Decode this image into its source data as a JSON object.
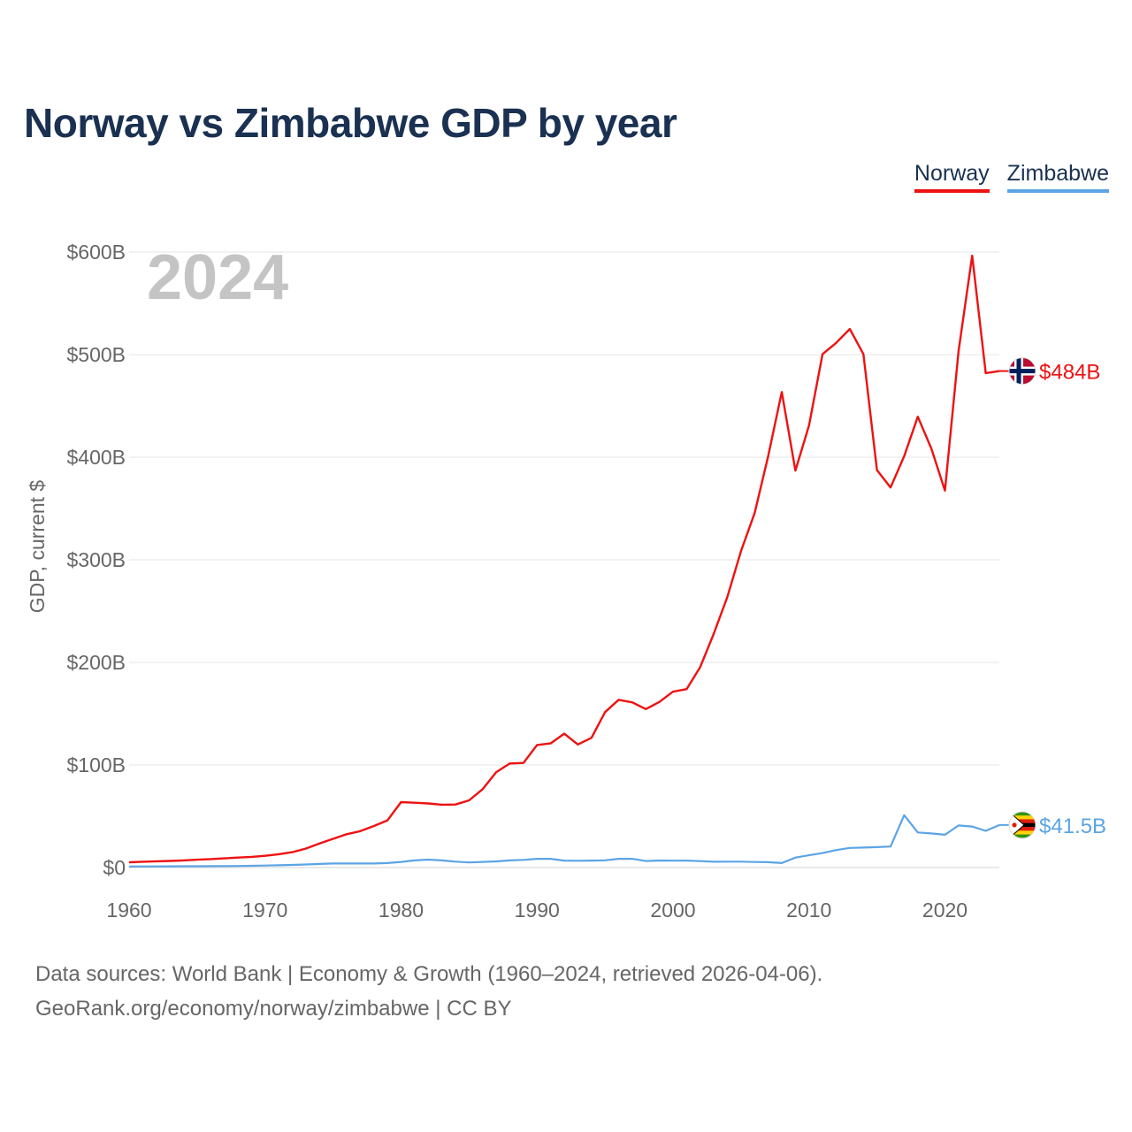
{
  "title": "Norway vs Zimbabwe GDP by year",
  "legend": {
    "norway_label": "Norway",
    "zimbabwe_label": "Zimbabwe"
  },
  "footer": {
    "line1": "Data sources: World Bank | Economy & Growth (1960–2024, retrieved 2026-04-06).",
    "line2": "GeoRank.org/economy/norway/zimbabwe | CC BY"
  },
  "chart_data": {
    "type": "line",
    "year_watermark": "2024",
    "ylabel": "GDP, current $",
    "xlabel": "",
    "xlim": [
      1960,
      2024
    ],
    "ylim": [
      0,
      600
    ],
    "units": "billions USD",
    "x_ticks": [
      1960,
      1970,
      1980,
      1990,
      2000,
      2010,
      2020
    ],
    "x_tick_labels": [
      "1960",
      "1970",
      "1980",
      "1990",
      "2000",
      "2010",
      "2020"
    ],
    "y_ticks": [
      0,
      100,
      200,
      300,
      400,
      500,
      600
    ],
    "y_tick_labels": [
      "$0",
      "$100B",
      "$200B",
      "$300B",
      "$400B",
      "$500B",
      "$600B"
    ],
    "grid": true,
    "x": [
      1960,
      1961,
      1962,
      1963,
      1964,
      1965,
      1966,
      1967,
      1968,
      1969,
      1970,
      1971,
      1972,
      1973,
      1974,
      1975,
      1976,
      1977,
      1978,
      1979,
      1980,
      1981,
      1982,
      1983,
      1984,
      1985,
      1986,
      1987,
      1988,
      1989,
      1990,
      1991,
      1992,
      1993,
      1994,
      1995,
      1996,
      1997,
      1998,
      1999,
      2000,
      2001,
      2002,
      2003,
      2004,
      2005,
      2006,
      2007,
      2008,
      2009,
      2010,
      2011,
      2012,
      2013,
      2014,
      2015,
      2016,
      2017,
      2018,
      2019,
      2020,
      2021,
      2022,
      2023,
      2024
    ],
    "series": [
      {
        "name": "Norway",
        "color": "#ee1111",
        "end_label": "$484B",
        "values": [
          5.2,
          5.7,
          6.1,
          6.5,
          7.0,
          7.7,
          8.3,
          9.0,
          9.7,
          10.4,
          11.5,
          13.0,
          15.0,
          18.5,
          23.5,
          28.0,
          32.5,
          35.5,
          40.5,
          46.0,
          63.8,
          63.2,
          62.5,
          61.3,
          61.5,
          65.5,
          76.5,
          93.0,
          101.5,
          102.0,
          119.5,
          121.0,
          130.5,
          120.0,
          126.5,
          151.5,
          163.5,
          161.0,
          154.5,
          161.5,
          171.5,
          174.0,
          195.5,
          228.0,
          264.0,
          308.5,
          345.5,
          401.0,
          463.5,
          387.0,
          431.0,
          500.5,
          511.5,
          525.0,
          500.5,
          387.5,
          370.5,
          401.0,
          439.5,
          408.5,
          367.5,
          503.5,
          596.5,
          482.0,
          484.0
        ]
      },
      {
        "name": "Zimbabwe",
        "color": "#5ba4e5",
        "end_label": "$41.5B",
        "values": [
          1.05,
          1.1,
          1.15,
          1.2,
          1.25,
          1.3,
          1.35,
          1.45,
          1.55,
          1.75,
          2.0,
          2.2,
          2.6,
          3.0,
          3.5,
          4.0,
          4.0,
          4.0,
          4.0,
          4.4,
          5.5,
          7.0,
          7.8,
          7.0,
          5.8,
          5.0,
          5.5,
          6.0,
          7.0,
          7.5,
          8.5,
          8.5,
          6.8,
          6.6,
          6.8,
          7.1,
          8.5,
          8.5,
          6.4,
          6.9,
          6.7,
          6.8,
          6.3,
          5.7,
          5.8,
          5.8,
          5.4,
          5.3,
          4.4,
          9.7,
          12.0,
          14.1,
          17.1,
          19.1,
          19.5,
          19.9,
          20.5,
          51.0,
          34.2,
          33.3,
          32.0,
          41.0,
          40.0,
          35.8,
          41.5
        ]
      }
    ]
  }
}
